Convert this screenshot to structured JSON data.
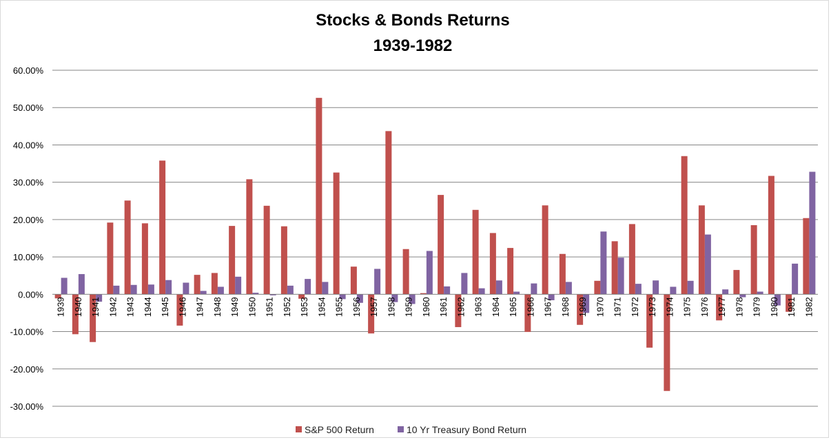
{
  "chart_data": {
    "type": "bar",
    "title": "Stocks & Bonds Returns",
    "subtitle": "1939-1982",
    "ylim": [
      -30,
      60
    ],
    "yticks": [
      60,
      50,
      40,
      30,
      20,
      10,
      0,
      -10,
      -20,
      -30
    ],
    "ytick_labels": [
      "60.00%",
      "50.00%",
      "40.00%",
      "30.00%",
      "20.00%",
      "10.00%",
      "0.00%",
      "-10.00%",
      "-20.00%",
      "-30.00%"
    ],
    "grid": true,
    "legend_position": "bottom",
    "categories": [
      "1939",
      "1940",
      "1941",
      "1942",
      "1943",
      "1944",
      "1945",
      "1946",
      "1947",
      "1948",
      "1949",
      "1950",
      "1951",
      "1952",
      "1953",
      "1954",
      "1955",
      "1956",
      "1957",
      "1958",
      "1959",
      "1960",
      "1961",
      "1962",
      "1963",
      "1964",
      "1965",
      "1966",
      "1967",
      "1968",
      "1969",
      "1970",
      "1971",
      "1972",
      "1973",
      "1974",
      "1975",
      "1976",
      "1977",
      "1978",
      "1979",
      "1980",
      "1981",
      "1982"
    ],
    "series": [
      {
        "name": "S&P 500 Return",
        "color": "#c0504d",
        "values": [
          -1.1,
          -10.7,
          -12.8,
          19.2,
          25.1,
          19.0,
          35.8,
          -8.4,
          5.2,
          5.7,
          18.3,
          30.8,
          23.7,
          18.2,
          -1.2,
          52.6,
          32.6,
          7.4,
          -10.5,
          43.7,
          12.1,
          0.3,
          26.6,
          -8.8,
          22.6,
          16.4,
          12.4,
          -10.1,
          23.8,
          10.8,
          -8.2,
          3.6,
          14.2,
          18.8,
          -14.3,
          -25.9,
          37.0,
          23.8,
          -7.0,
          6.5,
          18.5,
          31.7,
          -4.7,
          20.4
        ]
      },
      {
        "name": "10 Yr Treasury Bond Return",
        "color": "#8064a2",
        "values": [
          4.4,
          5.4,
          -2.0,
          2.3,
          2.5,
          2.6,
          3.8,
          3.1,
          0.9,
          2.0,
          4.7,
          0.4,
          -0.3,
          2.3,
          4.1,
          3.3,
          -1.3,
          -2.3,
          6.8,
          -2.1,
          -2.6,
          11.6,
          2.1,
          5.7,
          1.6,
          3.7,
          0.7,
          2.9,
          -1.6,
          3.3,
          -5.0,
          16.8,
          9.8,
          2.8,
          3.7,
          2.0,
          3.6,
          16.0,
          1.3,
          -0.8,
          0.7,
          -3.0,
          8.2,
          32.8
        ]
      }
    ]
  }
}
